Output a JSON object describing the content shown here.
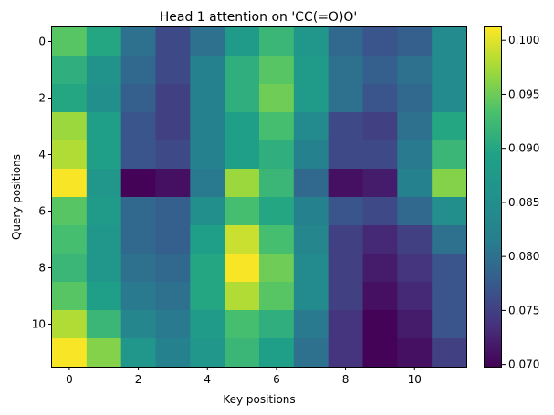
{
  "chart_data": {
    "type": "heatmap",
    "title": "Head 1 attention on 'CC(=O)O'",
    "xlabel": "Key positions",
    "ylabel": "Query positions",
    "x_ticks": [
      0,
      2,
      4,
      6,
      8,
      10
    ],
    "y_ticks": [
      0,
      2,
      4,
      6,
      8,
      10
    ],
    "colorbar": {
      "min": 0.0698,
      "max": 0.1012,
      "ticks": [
        "0.070",
        "0.075",
        "0.080",
        "0.085",
        "0.090",
        "0.095",
        "0.100"
      ],
      "colormap": "viridis"
    },
    "rows": 12,
    "cols": 12,
    "values": [
      [
        0.094,
        0.09,
        0.08,
        0.076,
        0.08,
        0.088,
        0.092,
        0.087,
        0.079,
        0.077,
        0.078,
        0.084
      ],
      [
        0.091,
        0.086,
        0.079,
        0.076,
        0.082,
        0.091,
        0.094,
        0.088,
        0.08,
        0.078,
        0.08,
        0.084
      ],
      [
        0.09,
        0.085,
        0.078,
        0.075,
        0.082,
        0.091,
        0.095,
        0.088,
        0.08,
        0.077,
        0.079,
        0.084
      ],
      [
        0.097,
        0.089,
        0.077,
        0.075,
        0.082,
        0.089,
        0.093,
        0.084,
        0.076,
        0.075,
        0.08,
        0.09
      ],
      [
        0.098,
        0.089,
        0.077,
        0.076,
        0.082,
        0.089,
        0.091,
        0.082,
        0.076,
        0.076,
        0.081,
        0.092
      ],
      [
        0.101,
        0.087,
        0.07,
        0.071,
        0.081,
        0.097,
        0.092,
        0.079,
        0.071,
        0.072,
        0.082,
        0.096
      ],
      [
        0.094,
        0.088,
        0.079,
        0.078,
        0.085,
        0.093,
        0.09,
        0.082,
        0.077,
        0.076,
        0.079,
        0.085
      ],
      [
        0.093,
        0.087,
        0.079,
        0.078,
        0.089,
        0.099,
        0.093,
        0.083,
        0.075,
        0.073,
        0.075,
        0.08
      ],
      [
        0.092,
        0.087,
        0.08,
        0.079,
        0.09,
        0.101,
        0.095,
        0.084,
        0.075,
        0.072,
        0.074,
        0.077
      ],
      [
        0.094,
        0.089,
        0.081,
        0.08,
        0.09,
        0.098,
        0.094,
        0.084,
        0.075,
        0.071,
        0.073,
        0.077
      ],
      [
        0.098,
        0.092,
        0.083,
        0.081,
        0.088,
        0.093,
        0.091,
        0.081,
        0.074,
        0.07,
        0.072,
        0.077
      ],
      [
        0.101,
        0.096,
        0.087,
        0.082,
        0.087,
        0.092,
        0.089,
        0.08,
        0.074,
        0.07,
        0.071,
        0.075
      ]
    ]
  }
}
